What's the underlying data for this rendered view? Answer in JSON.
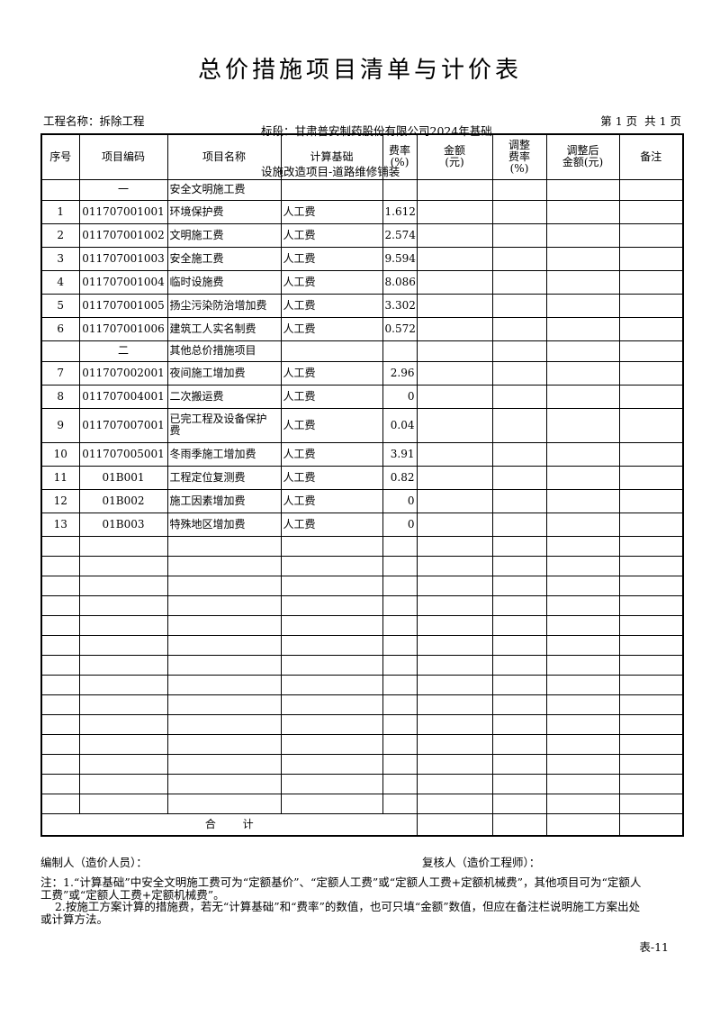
{
  "page": {
    "title": "总价措施项目清单与计价表",
    "project_label": "工程名称：拆除工程",
    "section_line1": "标段：甘肃普安制药股份有限公司2024年基础",
    "section_line2": "设施改造项目-道路维修铺装",
    "page_indicator": "第 1 页  共 1 页",
    "form_code": "表-11"
  },
  "table": {
    "columns": [
      "序号",
      "项目编码",
      "项目名称",
      "计算基础",
      "费率\n(%)",
      "金额\n(元)",
      "调整\n费率\n(%)",
      "调整后\n金额(元)",
      "备注"
    ],
    "rows": [
      {
        "type": "section",
        "code": "一",
        "name": "安全文明施工费"
      },
      {
        "type": "item",
        "no": "1",
        "code": "011707001001",
        "name": "环境保护费",
        "base": "人工费",
        "rate": "1.612"
      },
      {
        "type": "item",
        "no": "2",
        "code": "011707001002",
        "name": "文明施工费",
        "base": "人工费",
        "rate": "2.574"
      },
      {
        "type": "item",
        "no": "3",
        "code": "011707001003",
        "name": "安全施工费",
        "base": "人工费",
        "rate": "9.594"
      },
      {
        "type": "item",
        "no": "4",
        "code": "011707001004",
        "name": "临时设施费",
        "base": "人工费",
        "rate": "8.086"
      },
      {
        "type": "item",
        "no": "5",
        "code": "011707001005",
        "name": "扬尘污染防治增加费",
        "base": "人工费",
        "rate": "3.302"
      },
      {
        "type": "item",
        "no": "6",
        "code": "011707001006",
        "name": "建筑工人实名制费",
        "base": "人工费",
        "rate": "0.572"
      },
      {
        "type": "section",
        "code": "二",
        "name": "其他总价措施项目"
      },
      {
        "type": "item",
        "no": "7",
        "code": "011707002001",
        "name": "夜间施工增加费",
        "base": "人工费",
        "rate": "2.96"
      },
      {
        "type": "item",
        "no": "8",
        "code": "011707004001",
        "name": "二次搬运费",
        "base": "人工费",
        "rate": "0"
      },
      {
        "type": "item",
        "no": "9",
        "code": "011707007001",
        "name": "已完工程及设备保护\n费",
        "base": "人工费",
        "rate": "0.04",
        "tall": true
      },
      {
        "type": "item",
        "no": "10",
        "code": "011707005001",
        "name": "冬雨季施工增加费",
        "base": "人工费",
        "rate": "3.91"
      },
      {
        "type": "item",
        "no": "11",
        "code": "01B001",
        "name": "工程定位复测费",
        "base": "人工费",
        "rate": "0.82"
      },
      {
        "type": "item",
        "no": "12",
        "code": "01B002",
        "name": "施工因素增加费",
        "base": "人工费",
        "rate": "0"
      },
      {
        "type": "item",
        "no": "13",
        "code": "01B003",
        "name": "特殊地区增加费",
        "base": "人工费",
        "rate": "0"
      }
    ],
    "empty_row_count": 14,
    "total_label": "合 计"
  },
  "footer": {
    "preparer_label": "编制人（造价人员）：",
    "reviewer_label": "复核人（造价工程师）：",
    "note_lines": [
      "注：1.“计算基础”中安全文明施工费可为“定额基价”、“定额人工费”或“定额人工费+定额机械费”，其他项目可为“定额人",
      "工费”或“定额人工费+定额机械费”。",
      "    2.按施工方案计算的措施费，若无“计算基础”和“费率”的数值，也可只填“金额”数值，但应在备注栏说明施工方案出处",
      "或计算方法。"
    ]
  }
}
